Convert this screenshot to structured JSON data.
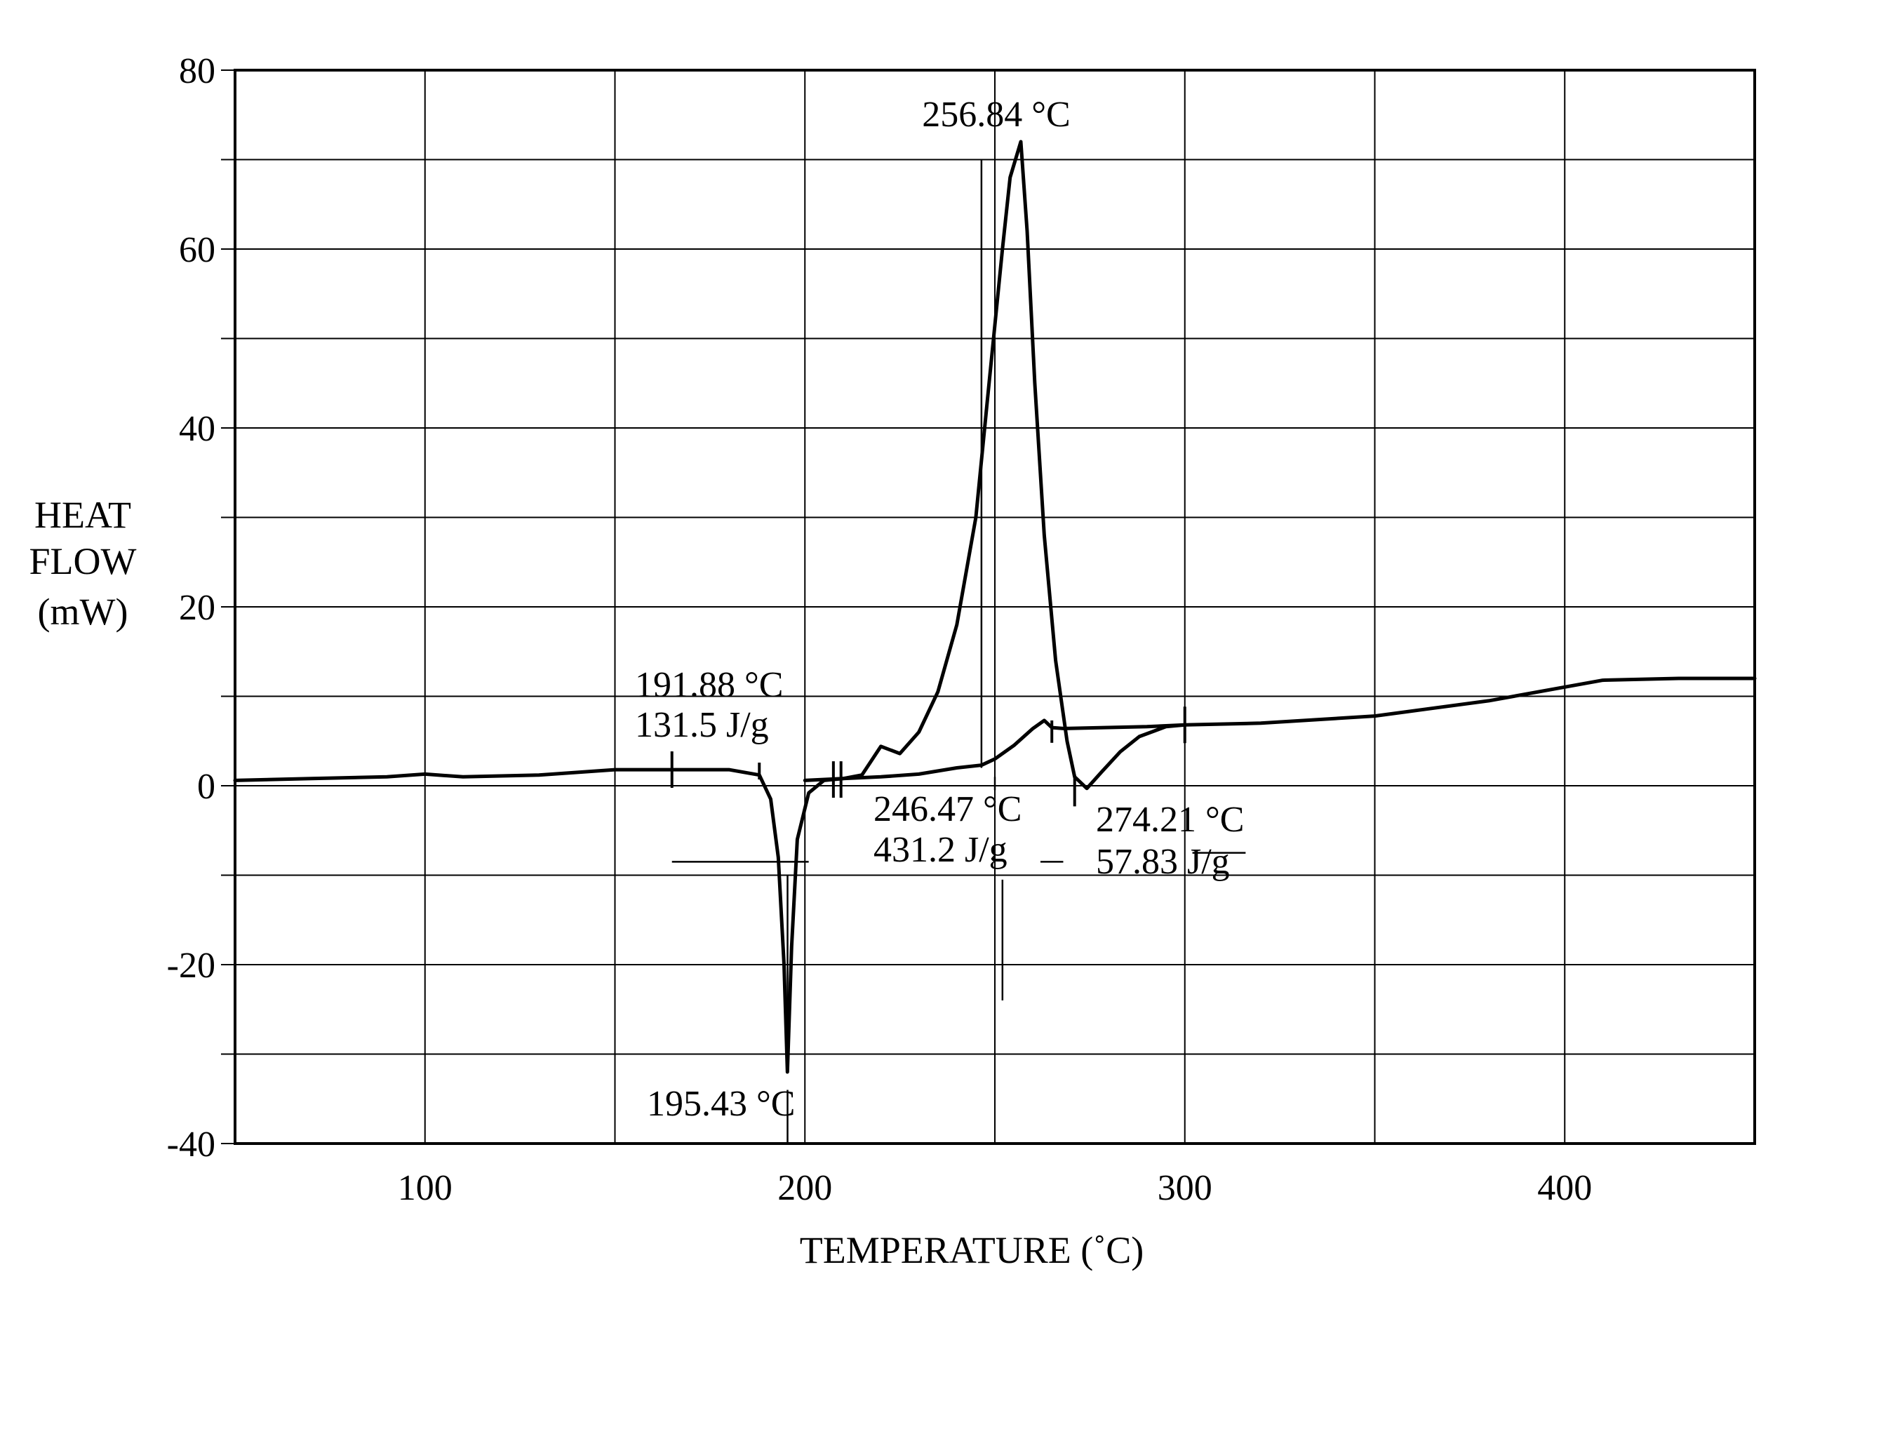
{
  "chart_data": {
    "type": "line",
    "xlabel": "TEMPERATURE (˚C)",
    "ylabel_lines": [
      "HEAT",
      "FLOW",
      "(mW)"
    ],
    "xlim": [
      50,
      450
    ],
    "ylim": [
      -40,
      80
    ],
    "x_ticks": [
      100,
      200,
      300,
      400
    ],
    "y_ticks": [
      80,
      60,
      40,
      20,
      0,
      -20,
      -40
    ],
    "x_tick_labels": [
      "100",
      "200",
      "300",
      "400"
    ],
    "y_tick_labels": [
      "80",
      "60",
      "40",
      "20",
      "0",
      "-20",
      "-40"
    ],
    "x_grid": [
      50,
      100,
      150,
      200,
      250,
      300,
      350,
      400,
      450
    ],
    "y_grid": [
      80,
      70,
      60,
      50,
      40,
      30,
      20,
      10,
      0,
      -10,
      -20,
      -30,
      -40
    ],
    "grid": true,
    "series": [
      {
        "x": [
          50,
          70,
          90,
          100,
          110,
          130,
          150,
          165,
          180,
          188,
          191,
          193,
          194.5,
          195.4,
          196.5,
          198,
          201,
          205,
          210,
          215,
          220,
          225,
          230,
          235,
          240,
          245,
          248,
          252,
          254,
          256.84,
          258.5,
          260.5,
          263,
          266,
          269,
          271,
          274.21,
          278,
          283,
          288,
          295,
          300,
          320,
          350,
          380,
          410,
          430,
          450
        ],
        "y": [
          0.6,
          0.8,
          1.0,
          1.3,
          1.0,
          1.2,
          1.8,
          1.8,
          1.8,
          1.2,
          -1.5,
          -8,
          -20,
          -32,
          -18,
          -6,
          -0.8,
          0.6,
          0.8,
          1.2,
          4.4,
          3.6,
          6.0,
          10.5,
          18,
          30,
          43,
          60,
          68,
          72,
          62,
          45,
          28,
          14,
          5.0,
          1.0,
          -0.3,
          1.5,
          3.8,
          5.5,
          6.6,
          6.8,
          7.0,
          7.8,
          9.5,
          11.8,
          12.0,
          12.0
        ]
      },
      {
        "x": [
          200,
          210,
          220,
          230,
          240,
          246.47,
          250,
          255,
          260,
          263,
          265,
          268,
          290,
          300
        ],
        "y": [
          0.6,
          0.8,
          1.0,
          1.3,
          2.0,
          2.3,
          3.0,
          4.5,
          6.4,
          7.3,
          6.5,
          6.4,
          6.6,
          6.8
        ]
      }
    ],
    "annotations": {
      "peak_exo": "256.84 °C",
      "melt_onset": [
        "191.88 °C",
        "131.5 J/g"
      ],
      "melt_peak": "195.43 °C",
      "exo_onset": [
        "246.47 °C",
        "431.2 J/g"
      ],
      "endo_peak": [
        "274.21 °C",
        "57.83 J/g"
      ]
    }
  }
}
